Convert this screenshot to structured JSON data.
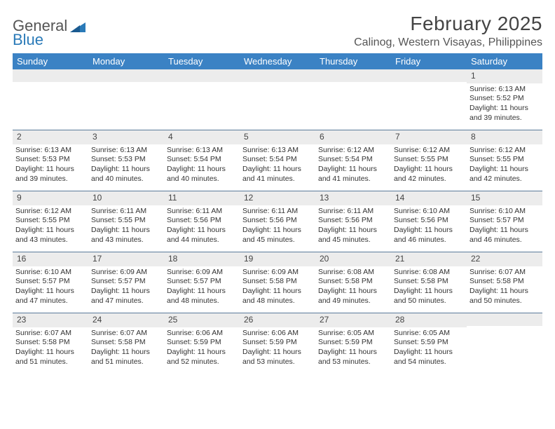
{
  "logo": {
    "word1": "General",
    "word2": "Blue"
  },
  "title": "February 2025",
  "location": "Calinog, Western Visayas, Philippines",
  "colors": {
    "header_bar": "#3b82c4",
    "header_text": "#ffffff",
    "daynum_bg": "#ececec",
    "week_border": "#5a7a9a",
    "logo_blue": "#2a7ab8"
  },
  "day_labels": [
    "Sunday",
    "Monday",
    "Tuesday",
    "Wednesday",
    "Thursday",
    "Friday",
    "Saturday"
  ],
  "weeks": [
    [
      {
        "n": "",
        "sr": "",
        "ss": "",
        "dl": ""
      },
      {
        "n": "",
        "sr": "",
        "ss": "",
        "dl": ""
      },
      {
        "n": "",
        "sr": "",
        "ss": "",
        "dl": ""
      },
      {
        "n": "",
        "sr": "",
        "ss": "",
        "dl": ""
      },
      {
        "n": "",
        "sr": "",
        "ss": "",
        "dl": ""
      },
      {
        "n": "",
        "sr": "",
        "ss": "",
        "dl": ""
      },
      {
        "n": "1",
        "sr": "Sunrise: 6:13 AM",
        "ss": "Sunset: 5:52 PM",
        "dl": "Daylight: 11 hours and 39 minutes."
      }
    ],
    [
      {
        "n": "2",
        "sr": "Sunrise: 6:13 AM",
        "ss": "Sunset: 5:53 PM",
        "dl": "Daylight: 11 hours and 39 minutes."
      },
      {
        "n": "3",
        "sr": "Sunrise: 6:13 AM",
        "ss": "Sunset: 5:53 PM",
        "dl": "Daylight: 11 hours and 40 minutes."
      },
      {
        "n": "4",
        "sr": "Sunrise: 6:13 AM",
        "ss": "Sunset: 5:54 PM",
        "dl": "Daylight: 11 hours and 40 minutes."
      },
      {
        "n": "5",
        "sr": "Sunrise: 6:13 AM",
        "ss": "Sunset: 5:54 PM",
        "dl": "Daylight: 11 hours and 41 minutes."
      },
      {
        "n": "6",
        "sr": "Sunrise: 6:12 AM",
        "ss": "Sunset: 5:54 PM",
        "dl": "Daylight: 11 hours and 41 minutes."
      },
      {
        "n": "7",
        "sr": "Sunrise: 6:12 AM",
        "ss": "Sunset: 5:55 PM",
        "dl": "Daylight: 11 hours and 42 minutes."
      },
      {
        "n": "8",
        "sr": "Sunrise: 6:12 AM",
        "ss": "Sunset: 5:55 PM",
        "dl": "Daylight: 11 hours and 42 minutes."
      }
    ],
    [
      {
        "n": "9",
        "sr": "Sunrise: 6:12 AM",
        "ss": "Sunset: 5:55 PM",
        "dl": "Daylight: 11 hours and 43 minutes."
      },
      {
        "n": "10",
        "sr": "Sunrise: 6:11 AM",
        "ss": "Sunset: 5:55 PM",
        "dl": "Daylight: 11 hours and 43 minutes."
      },
      {
        "n": "11",
        "sr": "Sunrise: 6:11 AM",
        "ss": "Sunset: 5:56 PM",
        "dl": "Daylight: 11 hours and 44 minutes."
      },
      {
        "n": "12",
        "sr": "Sunrise: 6:11 AM",
        "ss": "Sunset: 5:56 PM",
        "dl": "Daylight: 11 hours and 45 minutes."
      },
      {
        "n": "13",
        "sr": "Sunrise: 6:11 AM",
        "ss": "Sunset: 5:56 PM",
        "dl": "Daylight: 11 hours and 45 minutes."
      },
      {
        "n": "14",
        "sr": "Sunrise: 6:10 AM",
        "ss": "Sunset: 5:56 PM",
        "dl": "Daylight: 11 hours and 46 minutes."
      },
      {
        "n": "15",
        "sr": "Sunrise: 6:10 AM",
        "ss": "Sunset: 5:57 PM",
        "dl": "Daylight: 11 hours and 46 minutes."
      }
    ],
    [
      {
        "n": "16",
        "sr": "Sunrise: 6:10 AM",
        "ss": "Sunset: 5:57 PM",
        "dl": "Daylight: 11 hours and 47 minutes."
      },
      {
        "n": "17",
        "sr": "Sunrise: 6:09 AM",
        "ss": "Sunset: 5:57 PM",
        "dl": "Daylight: 11 hours and 47 minutes."
      },
      {
        "n": "18",
        "sr": "Sunrise: 6:09 AM",
        "ss": "Sunset: 5:57 PM",
        "dl": "Daylight: 11 hours and 48 minutes."
      },
      {
        "n": "19",
        "sr": "Sunrise: 6:09 AM",
        "ss": "Sunset: 5:58 PM",
        "dl": "Daylight: 11 hours and 48 minutes."
      },
      {
        "n": "20",
        "sr": "Sunrise: 6:08 AM",
        "ss": "Sunset: 5:58 PM",
        "dl": "Daylight: 11 hours and 49 minutes."
      },
      {
        "n": "21",
        "sr": "Sunrise: 6:08 AM",
        "ss": "Sunset: 5:58 PM",
        "dl": "Daylight: 11 hours and 50 minutes."
      },
      {
        "n": "22",
        "sr": "Sunrise: 6:07 AM",
        "ss": "Sunset: 5:58 PM",
        "dl": "Daylight: 11 hours and 50 minutes."
      }
    ],
    [
      {
        "n": "23",
        "sr": "Sunrise: 6:07 AM",
        "ss": "Sunset: 5:58 PM",
        "dl": "Daylight: 11 hours and 51 minutes."
      },
      {
        "n": "24",
        "sr": "Sunrise: 6:07 AM",
        "ss": "Sunset: 5:58 PM",
        "dl": "Daylight: 11 hours and 51 minutes."
      },
      {
        "n": "25",
        "sr": "Sunrise: 6:06 AM",
        "ss": "Sunset: 5:59 PM",
        "dl": "Daylight: 11 hours and 52 minutes."
      },
      {
        "n": "26",
        "sr": "Sunrise: 6:06 AM",
        "ss": "Sunset: 5:59 PM",
        "dl": "Daylight: 11 hours and 53 minutes."
      },
      {
        "n": "27",
        "sr": "Sunrise: 6:05 AM",
        "ss": "Sunset: 5:59 PM",
        "dl": "Daylight: 11 hours and 53 minutes."
      },
      {
        "n": "28",
        "sr": "Sunrise: 6:05 AM",
        "ss": "Sunset: 5:59 PM",
        "dl": "Daylight: 11 hours and 54 minutes."
      },
      {
        "n": "",
        "sr": "",
        "ss": "",
        "dl": ""
      }
    ]
  ]
}
